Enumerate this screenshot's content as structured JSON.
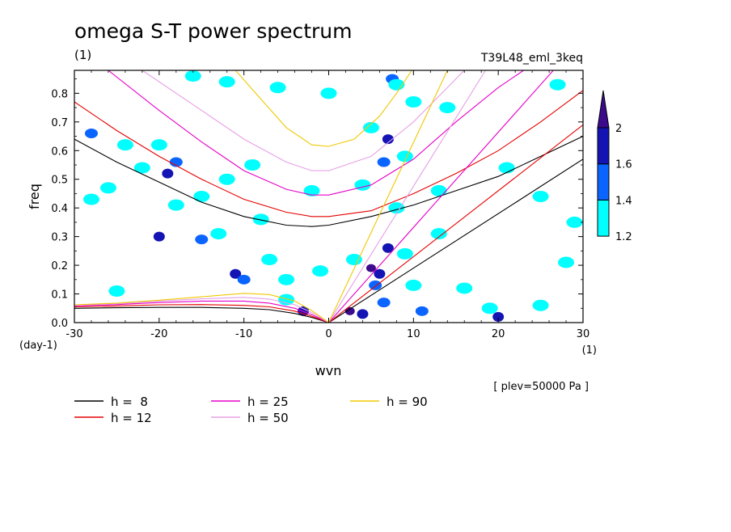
{
  "chart_data": {
    "type": "heatmap",
    "title": "omega S-T power spectrum",
    "subtitle": "(1)",
    "run_label": "T39L48_eml_3keq",
    "xlabel": "wvn",
    "ylabel": "freq",
    "x_unit": "(1)",
    "y_unit": "(day-1)",
    "annotation": "[ plev=50000 Pa ]",
    "xlim": [
      -30,
      30
    ],
    "ylim": [
      0,
      0.88
    ],
    "x_ticks": [
      -30,
      -20,
      -10,
      0,
      10,
      20,
      30
    ],
    "x_tick_labels": [
      "-30",
      "-20",
      "-10",
      "0",
      "10",
      "20",
      "30"
    ],
    "y_ticks": [
      0,
      0.1,
      0.2,
      0.3,
      0.4,
      0.5,
      0.6,
      0.7,
      0.8
    ],
    "y_tick_labels": [
      "0.0",
      "0.1",
      "0.2",
      "0.3",
      "0.4",
      "0.5",
      "0.6",
      "0.7",
      "0.8"
    ],
    "colorbar": {
      "levels": [
        1.2,
        1.4,
        1.6,
        2
      ],
      "level_labels": [
        "1.2",
        "1.4",
        "1.6",
        "2"
      ],
      "colors": [
        "#00ffff",
        "#0a64ff",
        "#1414b4",
        "#3c0a8c"
      ]
    },
    "legend": [
      {
        "label": "h =  8",
        "color": "#000000"
      },
      {
        "label": "h = 12",
        "color": "#e60000"
      },
      {
        "label": "h = 25",
        "color": "#e600c8"
      },
      {
        "label": "h = 50",
        "color": "#e6a0e6"
      },
      {
        "label": "h = 90",
        "color": "#f0c800"
      }
    ],
    "grid": false,
    "dispersion_curves": [
      {
        "h": 8,
        "color": "#000000",
        "lines": [
          {
            "kind": "er",
            "points": [
              [
                -30,
                0.64
              ],
              [
                -25,
                0.56
              ],
              [
                -20,
                0.49
              ],
              [
                -15,
                0.42
              ],
              [
                -10,
                0.37
              ],
              [
                -5,
                0.34
              ],
              [
                -2,
                0.335
              ],
              [
                0,
                0.34
              ],
              [
                5,
                0.37
              ],
              [
                10,
                0.41
              ],
              [
                15,
                0.46
              ],
              [
                20,
                0.51
              ],
              [
                25,
                0.58
              ],
              [
                30,
                0.65
              ]
            ]
          },
          {
            "kind": "kelvin",
            "points": [
              [
                0,
                0
              ],
              [
                30,
                0.57
              ]
            ]
          },
          {
            "kind": "rossby",
            "points": [
              [
                -30,
                0.05
              ],
              [
                -25,
                0.052
              ],
              [
                -20,
                0.053
              ],
              [
                -15,
                0.053
              ],
              [
                -10,
                0.05
              ],
              [
                -7,
                0.045
              ],
              [
                -4,
                0.032
              ],
              [
                -2,
                0.018
              ],
              [
                0,
                0
              ]
            ]
          }
        ]
      },
      {
        "h": 12,
        "color": "#e60000",
        "lines": [
          {
            "kind": "er",
            "points": [
              [
                -30,
                0.77
              ],
              [
                -25,
                0.67
              ],
              [
                -20,
                0.58
              ],
              [
                -15,
                0.5
              ],
              [
                -10,
                0.43
              ],
              [
                -5,
                0.385
              ],
              [
                -2,
                0.37
              ],
              [
                0,
                0.37
              ],
              [
                5,
                0.39
              ],
              [
                10,
                0.45
              ],
              [
                15,
                0.52
              ],
              [
                20,
                0.6
              ],
              [
                25,
                0.7
              ],
              [
                30,
                0.81
              ]
            ]
          },
          {
            "kind": "kelvin",
            "points": [
              [
                0,
                0
              ],
              [
                30,
                0.69
              ]
            ]
          },
          {
            "kind": "rossby",
            "points": [
              [
                -30,
                0.055
              ],
              [
                -25,
                0.058
              ],
              [
                -20,
                0.062
              ],
              [
                -15,
                0.063
              ],
              [
                -10,
                0.06
              ],
              [
                -7,
                0.055
              ],
              [
                -4,
                0.04
              ],
              [
                -2,
                0.022
              ],
              [
                0,
                0
              ]
            ]
          }
        ]
      },
      {
        "h": 25,
        "color": "#e600c8",
        "lines": [
          {
            "kind": "er",
            "points": [
              [
                -26,
                0.88
              ],
              [
                -20,
                0.74
              ],
              [
                -15,
                0.63
              ],
              [
                -10,
                0.53
              ],
              [
                -5,
                0.465
              ],
              [
                -2,
                0.445
              ],
              [
                0,
                0.445
              ],
              [
                5,
                0.48
              ],
              [
                10,
                0.57
              ],
              [
                15,
                0.7
              ],
              [
                20,
                0.82
              ],
              [
                23,
                0.88
              ]
            ]
          },
          {
            "kind": "kelvin",
            "points": [
              [
                0,
                0
              ],
              [
                26.5,
                0.88
              ]
            ]
          },
          {
            "kind": "rossby",
            "points": [
              [
                -30,
                0.058
              ],
              [
                -25,
                0.063
              ],
              [
                -20,
                0.07
              ],
              [
                -15,
                0.075
              ],
              [
                -10,
                0.075
              ],
              [
                -7,
                0.068
              ],
              [
                -4,
                0.05
              ],
              [
                -2,
                0.028
              ],
              [
                0,
                0
              ]
            ]
          }
        ]
      },
      {
        "h": 50,
        "color": "#e6a0e6",
        "lines": [
          {
            "kind": "er",
            "points": [
              [
                -22,
                0.88
              ],
              [
                -15,
                0.74
              ],
              [
                -10,
                0.64
              ],
              [
                -5,
                0.56
              ],
              [
                -2,
                0.53
              ],
              [
                0,
                0.53
              ],
              [
                5,
                0.58
              ],
              [
                10,
                0.7
              ],
              [
                14,
                0.82
              ],
              [
                16,
                0.88
              ]
            ]
          },
          {
            "kind": "kelvin",
            "points": [
              [
                0,
                0
              ],
              [
                18.5,
                0.88
              ]
            ]
          },
          {
            "kind": "rossby",
            "points": [
              [
                -30,
                0.06
              ],
              [
                -25,
                0.066
              ],
              [
                -20,
                0.075
              ],
              [
                -15,
                0.083
              ],
              [
                -10,
                0.088
              ],
              [
                -7,
                0.082
              ],
              [
                -4,
                0.062
              ],
              [
                -2,
                0.035
              ],
              [
                0,
                0
              ]
            ]
          }
        ]
      },
      {
        "h": 90,
        "color": "#f0c800",
        "lines": [
          {
            "kind": "er",
            "points": [
              [
                -11,
                0.88
              ],
              [
                -8,
                0.78
              ],
              [
                -5,
                0.68
              ],
              [
                -2,
                0.62
              ],
              [
                0,
                0.615
              ],
              [
                3,
                0.64
              ],
              [
                6,
                0.72
              ],
              [
                8,
                0.8
              ],
              [
                9.8,
                0.88
              ]
            ]
          },
          {
            "kind": "kelvin",
            "points": [
              [
                0,
                0
              ],
              [
                14,
                0.88
              ]
            ]
          },
          {
            "kind": "rossby",
            "points": [
              [
                -30,
                0.062
              ],
              [
                -25,
                0.068
              ],
              [
                -20,
                0.078
              ],
              [
                -15,
                0.09
              ],
              [
                -10,
                0.102
              ],
              [
                -7,
                0.098
              ],
              [
                -4,
                0.075
              ],
              [
                -2,
                0.042
              ],
              [
                0,
                0
              ]
            ]
          }
        ]
      }
    ],
    "power_patches": [
      [
        -28,
        0.43,
        1.2
      ],
      [
        -26,
        0.47,
        1.2
      ],
      [
        -24,
        0.62,
        1.2
      ],
      [
        -22,
        0.54,
        1.2
      ],
      [
        -20,
        0.62,
        1.2
      ],
      [
        -19,
        0.52,
        1.6
      ],
      [
        -18,
        0.56,
        1.4
      ],
      [
        -18,
        0.41,
        1.2
      ],
      [
        -20,
        0.3,
        1.6
      ],
      [
        -15,
        0.29,
        1.4
      ],
      [
        -13,
        0.31,
        1.2
      ],
      [
        -11,
        0.17,
        1.6
      ],
      [
        -10,
        0.15,
        1.4
      ],
      [
        -9,
        0.55,
        1.2
      ],
      [
        -12,
        0.5,
        1.2
      ],
      [
        -7,
        0.22,
        1.2
      ],
      [
        -5,
        0.08,
        1.2
      ],
      [
        -3,
        0.04,
        1.6
      ],
      [
        -5,
        0.15,
        1.2
      ],
      [
        -1,
        0.18,
        1.2
      ],
      [
        -8,
        0.36,
        1.2
      ],
      [
        -25,
        0.11,
        1.2
      ],
      [
        -28,
        0.66,
        1.4
      ],
      [
        -16,
        0.86,
        1.2
      ],
      [
        -12,
        0.84,
        1.2
      ],
      [
        -6,
        0.82,
        1.2
      ],
      [
        0,
        0.8,
        1.2
      ],
      [
        -2,
        0.46,
        1.2
      ],
      [
        -15,
        0.44,
        1.2
      ],
      [
        2.5,
        0.04,
        2
      ],
      [
        4,
        0.03,
        1.6
      ],
      [
        5,
        0.19,
        2
      ],
      [
        6,
        0.17,
        1.6
      ],
      [
        5.5,
        0.13,
        1.4
      ],
      [
        7,
        0.26,
        1.6
      ],
      [
        6.5,
        0.07,
        1.4
      ],
      [
        7,
        0.64,
        1.6
      ],
      [
        6.5,
        0.56,
        1.4
      ],
      [
        5,
        0.68,
        1.2
      ],
      [
        7.5,
        0.85,
        1.4
      ],
      [
        8,
        0.83,
        1.2
      ],
      [
        9,
        0.58,
        1.2
      ],
      [
        8,
        0.4,
        1.2
      ],
      [
        9,
        0.24,
        1.2
      ],
      [
        10,
        0.13,
        1.2
      ],
      [
        11,
        0.04,
        1.4
      ],
      [
        13,
        0.46,
        1.2
      ],
      [
        13,
        0.31,
        1.2
      ],
      [
        16,
        0.12,
        1.2
      ],
      [
        19,
        0.05,
        1.2
      ],
      [
        20,
        0.02,
        1.6
      ],
      [
        21,
        0.54,
        1.2
      ],
      [
        25,
        0.44,
        1.2
      ],
      [
        28,
        0.21,
        1.2
      ],
      [
        25,
        0.06,
        1.2
      ],
      [
        27,
        0.83,
        1.2
      ],
      [
        14,
        0.75,
        1.2
      ],
      [
        4,
        0.48,
        1.2
      ],
      [
        10,
        0.77,
        1.2
      ],
      [
        3,
        0.22,
        1.2
      ],
      [
        29,
        0.35,
        1.2
      ]
    ]
  }
}
